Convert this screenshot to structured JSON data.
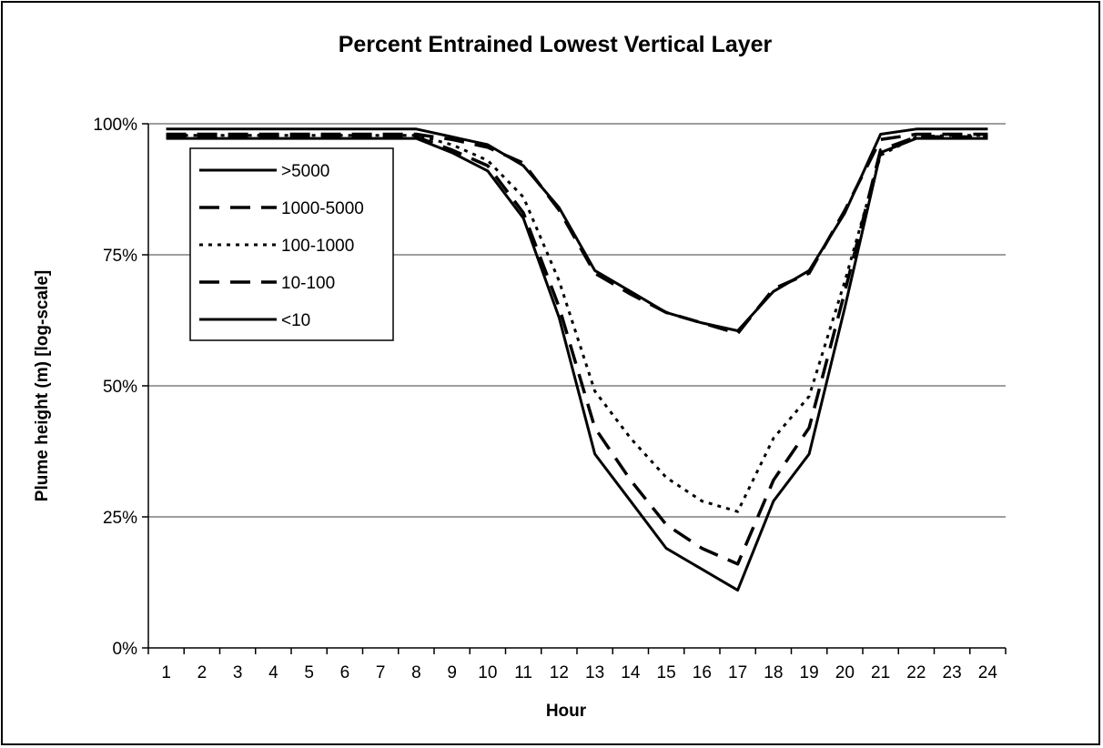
{
  "chart_data": {
    "type": "line",
    "title": "Percent Entrained Lowest Vertical Layer",
    "xlabel": "Hour",
    "ylabel": "Plume height (m)   [log-scale]",
    "x": [
      1,
      2,
      3,
      4,
      5,
      6,
      7,
      8,
      9,
      10,
      11,
      12,
      13,
      14,
      15,
      16,
      17,
      18,
      19,
      20,
      21,
      22,
      23,
      24
    ],
    "x_tick_labels": [
      "1",
      "2",
      "3",
      "4",
      "5",
      "6",
      "7",
      "8",
      "9",
      "10",
      "11",
      "12",
      "13",
      "14",
      "15",
      "16",
      "17",
      "18",
      "19",
      "20",
      "21",
      "22",
      "23",
      "24"
    ],
    "ylim": [
      0,
      100
    ],
    "y_ticks": [
      0,
      25,
      50,
      75,
      100
    ],
    "y_tick_labels": [
      "0%",
      "25%",
      "50%",
      "75%",
      "100%"
    ],
    "grid": "horizontal",
    "legend_position": "top-left",
    "series": [
      {
        "name": ">5000",
        "style": "solid",
        "values": [
          99,
          99,
          99,
          99,
          99,
          99,
          99,
          99,
          97.5,
          96,
          92,
          84,
          72,
          68,
          64,
          62,
          60.5,
          68,
          72,
          83,
          98,
          99,
          99,
          99
        ]
      },
      {
        "name": "1000-5000",
        "style": "long-dash",
        "values": [
          98,
          98,
          98,
          98,
          98,
          98,
          98,
          98,
          97,
          95.5,
          92.5,
          83.5,
          71.5,
          67.5,
          64,
          62,
          60,
          68.5,
          71.5,
          83.5,
          97,
          98,
          98,
          98
        ]
      },
      {
        "name": "100-1000",
        "style": "dotted",
        "values": [
          97.8,
          97.8,
          97.8,
          97.8,
          97.8,
          97.8,
          97.8,
          97.8,
          96,
          93,
          86,
          70,
          49,
          40,
          32.5,
          28,
          26,
          40,
          48,
          70,
          94,
          97.5,
          97.8,
          97.8
        ]
      },
      {
        "name": "10-100",
        "style": "long-dash",
        "values": [
          97.5,
          97.5,
          97.5,
          97.5,
          97.5,
          97.5,
          97.5,
          97.5,
          95,
          92,
          83,
          65,
          42,
          32,
          23.5,
          19,
          16,
          32,
          42,
          68,
          95,
          97.5,
          97.5,
          97.5
        ]
      },
      {
        "name": "<10",
        "style": "solid",
        "values": [
          97.2,
          97.2,
          97.2,
          97.2,
          97.2,
          97.2,
          97.2,
          97.2,
          94.5,
          91,
          82,
          63,
          37,
          28,
          19,
          15,
          11,
          28,
          37,
          65,
          94.5,
          97.2,
          97.2,
          97.2
        ]
      }
    ]
  }
}
